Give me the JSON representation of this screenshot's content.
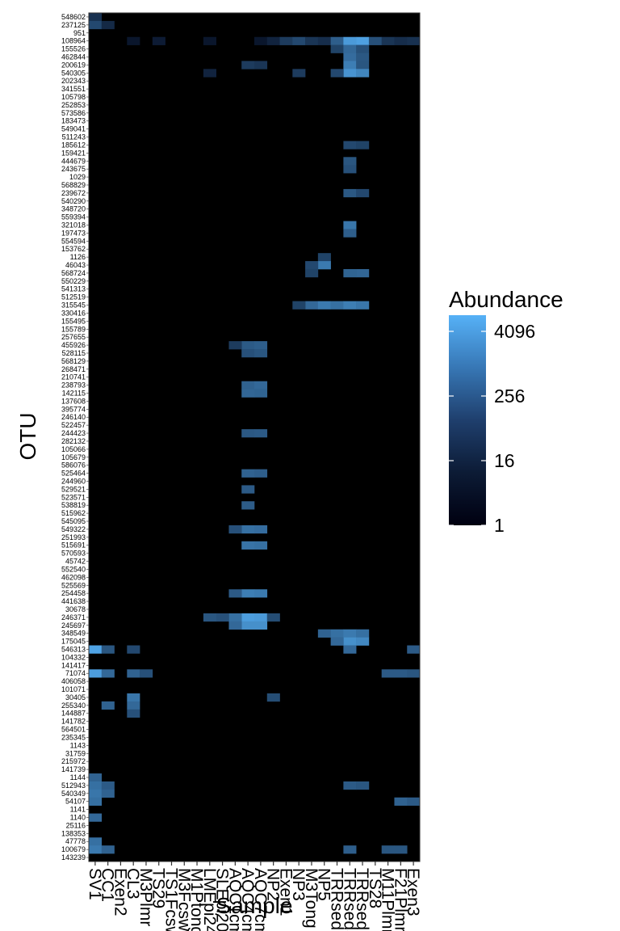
{
  "chart_data": {
    "type": "heatmap",
    "xlabel": "Sample",
    "ylabel": "OTU",
    "x_categories": [
      "SV1",
      "CC1",
      "Exen2",
      "CL3",
      "M3Plmr",
      "TS29",
      "TS1Fcsw",
      "M3Fcsw",
      "M1Ptong",
      "LMEpi24M",
      "SLEpi20M",
      "AQC1cm",
      "AQC4cm",
      "AQC7cm",
      "NP2",
      "Exen1",
      "NP3",
      "M3Tong",
      "NP5",
      "TRRsed1",
      "TRRsed3",
      "TRRsed2",
      "TS28",
      "M11Plmr",
      "F21Plmr",
      "Exen3"
    ],
    "y_categories": [
      "548602",
      "237125",
      "951",
      "108964",
      "155526",
      "462844",
      "200619",
      "540305",
      "202343",
      "341551",
      "105798",
      "252853",
      "573586",
      "183473",
      "549041",
      "511243",
      "185612",
      "159421",
      "444679",
      "243675",
      "1029",
      "568829",
      "239672",
      "540290",
      "348720",
      "559394",
      "321018",
      "197473",
      "554594",
      "153762",
      "1126",
      "46043",
      "568724",
      "550229",
      "541313",
      "512519",
      "315545",
      "330416",
      "155495",
      "155789",
      "257655",
      "455926",
      "528115",
      "568129",
      "268471",
      "210741",
      "238793",
      "142115",
      "137608",
      "395774",
      "246140",
      "522457",
      "244423",
      "282132",
      "105066",
      "105679",
      "586076",
      "525464",
      "244960",
      "529521",
      "523571",
      "538819",
      "515962",
      "545095",
      "549322",
      "251993",
      "515691",
      "570593",
      "45742",
      "552540",
      "462098",
      "525569",
      "254458",
      "441638",
      "30678",
      "246371",
      "245697",
      "348549",
      "175045",
      "546313",
      "104332",
      "141417",
      "71074",
      "406058",
      "101071",
      "30405",
      "255340",
      "144887",
      "141782",
      "564501",
      "235345",
      "1143",
      "31759",
      "215972",
      "141739",
      "1144",
      "512943",
      "540349",
      "54107",
      "1141",
      "1140",
      "25116",
      "138353",
      "47778",
      "100679",
      "143239"
    ],
    "colorscale": {
      "title": "Abundance",
      "scale": "log",
      "low_color": "#000010",
      "high_color": "#56b1f7",
      "tick_labels": [
        "4096",
        "256",
        "16",
        "1"
      ],
      "tick_values": [
        4096,
        256,
        16,
        1
      ],
      "max_value": 8192
    },
    "panel_background": "#000000",
    "hot_cells": [
      {
        "sample": "SV1",
        "otu": "548602",
        "value": 12
      },
      {
        "sample": "SV1",
        "otu": "237125",
        "value": 40
      },
      {
        "sample": "CC1",
        "otu": "237125",
        "value": 8
      },
      {
        "sample": "CL3",
        "otu": "108964",
        "value": 3
      },
      {
        "sample": "TS29",
        "otu": "108964",
        "value": 4
      },
      {
        "sample": "LMEpi24M",
        "otu": "108964",
        "value": 3
      },
      {
        "sample": "AQC7cm",
        "otu": "108964",
        "value": 3
      },
      {
        "sample": "NP2",
        "otu": "108964",
        "value": 6
      },
      {
        "sample": "Exen1",
        "otu": "108964",
        "value": 20
      },
      {
        "sample": "NP3",
        "otu": "108964",
        "value": 40
      },
      {
        "sample": "M3Tong",
        "otu": "108964",
        "value": 15
      },
      {
        "sample": "NP5",
        "otu": "108964",
        "value": 10
      },
      {
        "sample": "TRRsed1",
        "otu": "108964",
        "value": 120
      },
      {
        "sample": "TRRsed3",
        "otu": "108964",
        "value": 2500
      },
      {
        "sample": "TRRsed2",
        "otu": "108964",
        "value": 3500
      },
      {
        "sample": "TS28",
        "otu": "108964",
        "value": 60
      },
      {
        "sample": "M11Plmr",
        "otu": "108964",
        "value": 15
      },
      {
        "sample": "F21Plmr",
        "otu": "108964",
        "value": 10
      },
      {
        "sample": "Exen3",
        "otu": "108964",
        "value": 12
      },
      {
        "sample": "TRRsed1",
        "otu": "155526",
        "value": 30
      },
      {
        "sample": "TRRsed3",
        "otu": "155526",
        "value": 200
      },
      {
        "sample": "TRRsed2",
        "otu": "155526",
        "value": 60
      },
      {
        "sample": "TRRsed3",
        "otu": "462844",
        "value": 250
      },
      {
        "sample": "TRRsed2",
        "otu": "462844",
        "value": 90
      },
      {
        "sample": "AQC4cm",
        "otu": "200619",
        "value": 20
      },
      {
        "sample": "AQC7cm",
        "otu": "200619",
        "value": 15
      },
      {
        "sample": "TRRsed3",
        "otu": "200619",
        "value": 600
      },
      {
        "sample": "TRRsed2",
        "otu": "200619",
        "value": 80
      },
      {
        "sample": "LMEpi24M",
        "otu": "540305",
        "value": 6
      },
      {
        "sample": "NP3",
        "otu": "540305",
        "value": 20
      },
      {
        "sample": "TRRsed3",
        "otu": "540305",
        "value": 1800
      },
      {
        "sample": "TRRsed2",
        "otu": "540305",
        "value": 900
      },
      {
        "sample": "TRRsed1",
        "otu": "540305",
        "value": 40
      },
      {
        "sample": "TRRsed3",
        "otu": "185612",
        "value": 40
      },
      {
        "sample": "TRRsed2",
        "otu": "185612",
        "value": 30
      },
      {
        "sample": "TRRsed3",
        "otu": "444679",
        "value": 80
      },
      {
        "sample": "TRRsed3",
        "otu": "243675",
        "value": 60
      },
      {
        "sample": "TRRsed3",
        "otu": "239672",
        "value": 90
      },
      {
        "sample": "TRRsed2",
        "otu": "239672",
        "value": 40
      },
      {
        "sample": "TRRsed3",
        "otu": "321018",
        "value": 400
      },
      {
        "sample": "TRRsed3",
        "otu": "197473",
        "value": 120
      },
      {
        "sample": "NP5",
        "otu": "1126",
        "value": 30
      },
      {
        "sample": "NP5",
        "otu": "46043",
        "value": 500
      },
      {
        "sample": "M3Tong",
        "otu": "46043",
        "value": 40
      },
      {
        "sample": "TRRsed3",
        "otu": "568724",
        "value": 160
      },
      {
        "sample": "TRRsed2",
        "otu": "568724",
        "value": 180
      },
      {
        "sample": "M3Tong",
        "otu": "568724",
        "value": 30
      },
      {
        "sample": "M3Tong",
        "otu": "315545",
        "value": 200
      },
      {
        "sample": "NP5",
        "otu": "315545",
        "value": 500
      },
      {
        "sample": "TRRsed1",
        "otu": "315545",
        "value": 300
      },
      {
        "sample": "TRRsed3",
        "otu": "315545",
        "value": 600
      },
      {
        "sample": "TRRsed2",
        "otu": "315545",
        "value": 400
      },
      {
        "sample": "NP3",
        "otu": "315545",
        "value": 30
      },
      {
        "sample": "AQC4cm",
        "otu": "455926",
        "value": 100
      },
      {
        "sample": "AQC7cm",
        "otu": "455926",
        "value": 120
      },
      {
        "sample": "AQC1cm",
        "otu": "455926",
        "value": 20
      },
      {
        "sample": "AQC4cm",
        "otu": "528115",
        "value": 60
      },
      {
        "sample": "AQC7cm",
        "otu": "528115",
        "value": 80
      },
      {
        "sample": "AQC4cm",
        "otu": "238793",
        "value": 150
      },
      {
        "sample": "AQC7cm",
        "otu": "238793",
        "value": 200
      },
      {
        "sample": "AQC4cm",
        "otu": "142115",
        "value": 180
      },
      {
        "sample": "AQC7cm",
        "otu": "142115",
        "value": 160
      },
      {
        "sample": "AQC4cm",
        "otu": "244423",
        "value": 90
      },
      {
        "sample": "AQC7cm",
        "otu": "244423",
        "value": 100
      },
      {
        "sample": "AQC4cm",
        "otu": "525464",
        "value": 150
      },
      {
        "sample": "AQC7cm",
        "otu": "525464",
        "value": 120
      },
      {
        "sample": "AQC4cm",
        "otu": "529521",
        "value": 100
      },
      {
        "sample": "AQC4cm",
        "otu": "538819",
        "value": 110
      },
      {
        "sample": "AQC4cm",
        "otu": "549322",
        "value": 300
      },
      {
        "sample": "AQC7cm",
        "otu": "549322",
        "value": 250
      },
      {
        "sample": "AQC1cm",
        "otu": "549322",
        "value": 60
      },
      {
        "sample": "AQC4cm",
        "otu": "515691",
        "value": 350
      },
      {
        "sample": "AQC7cm",
        "otu": "515691",
        "value": 300
      },
      {
        "sample": "AQC4cm",
        "otu": "254458",
        "value": 600
      },
      {
        "sample": "AQC7cm",
        "otu": "254458",
        "value": 500
      },
      {
        "sample": "AQC1cm",
        "otu": "254458",
        "value": 100
      },
      {
        "sample": "AQC4cm",
        "otu": "246371",
        "value": 3000
      },
      {
        "sample": "AQC7cm",
        "otu": "246371",
        "value": 2500
      },
      {
        "sample": "AQC1cm",
        "otu": "246371",
        "value": 300
      },
      {
        "sample": "SLEpi20M",
        "otu": "246371",
        "value": 60
      },
      {
        "sample": "LMEpi24M",
        "otu": "246371",
        "value": 80
      },
      {
        "sample": "NP2",
        "otu": "246371",
        "value": 50
      },
      {
        "sample": "AQC4cm",
        "otu": "245697",
        "value": 1500
      },
      {
        "sample": "AQC7cm",
        "otu": "245697",
        "value": 1500
      },
      {
        "sample": "AQC1cm",
        "otu": "245697",
        "value": 200
      },
      {
        "sample": "NP5",
        "otu": "348549",
        "value": 150
      },
      {
        "sample": "TRRsed1",
        "otu": "348549",
        "value": 300
      },
      {
        "sample": "TRRsed3",
        "otu": "348549",
        "value": 500
      },
      {
        "sample": "TRRsed2",
        "otu": "348549",
        "value": 300
      },
      {
        "sample": "TRRsed3",
        "otu": "175045",
        "value": 1500
      },
      {
        "sample": "TRRsed2",
        "otu": "175045",
        "value": 1000
      },
      {
        "sample": "TRRsed1",
        "otu": "175045",
        "value": 200
      },
      {
        "sample": "SV1",
        "otu": "546313",
        "value": 4000
      },
      {
        "sample": "CC1",
        "otu": "546313",
        "value": 80
      },
      {
        "sample": "CL3",
        "otu": "546313",
        "value": 40
      },
      {
        "sample": "TRRsed3",
        "otu": "546313",
        "value": 200
      },
      {
        "sample": "Exen3",
        "otu": "546313",
        "value": 100
      },
      {
        "sample": "SV1",
        "otu": "71074",
        "value": 3000
      },
      {
        "sample": "CC1",
        "otu": "71074",
        "value": 200
      },
      {
        "sample": "CL3",
        "otu": "71074",
        "value": 150
      },
      {
        "sample": "M3Plmr",
        "otu": "71074",
        "value": 60
      },
      {
        "sample": "M11Plmr",
        "otu": "71074",
        "value": 100
      },
      {
        "sample": "F21Plmr",
        "otu": "71074",
        "value": 100
      },
      {
        "sample": "Exen3",
        "otu": "71074",
        "value": 80
      },
      {
        "sample": "CL3",
        "otu": "30405",
        "value": 400
      },
      {
        "sample": "CL3",
        "otu": "255340",
        "value": 200
      },
      {
        "sample": "CL3",
        "otu": "144887",
        "value": 60
      },
      {
        "sample": "CC1",
        "otu": "255340",
        "value": 150
      },
      {
        "sample": "NP2",
        "otu": "30405",
        "value": 50
      },
      {
        "sample": "SV1",
        "otu": "1144",
        "value": 150
      },
      {
        "sample": "SV1",
        "otu": "512943",
        "value": 300
      },
      {
        "sample": "SV1",
        "otu": "540349",
        "value": 400
      },
      {
        "sample": "SV1",
        "otu": "54107",
        "value": 300
      },
      {
        "sample": "SV1",
        "otu": "1140",
        "value": 200
      },
      {
        "sample": "SV1",
        "otu": "47778",
        "value": 300
      },
      {
        "sample": "SV1",
        "otu": "100679",
        "value": 500
      },
      {
        "sample": "CC1",
        "otu": "512943",
        "value": 100
      },
      {
        "sample": "CC1",
        "otu": "540349",
        "value": 150
      },
      {
        "sample": "CC1",
        "otu": "100679",
        "value": 150
      },
      {
        "sample": "TRRsed3",
        "otu": "512943",
        "value": 100
      },
      {
        "sample": "TRRsed2",
        "otu": "512943",
        "value": 80
      },
      {
        "sample": "TRRsed3",
        "otu": "100679",
        "value": 120
      },
      {
        "sample": "F21Plmr",
        "otu": "54107",
        "value": 150
      },
      {
        "sample": "Exen3",
        "otu": "54107",
        "value": 100
      },
      {
        "sample": "M11Plmr",
        "otu": "100679",
        "value": 80
      },
      {
        "sample": "F21Plmr",
        "otu": "100679",
        "value": 80
      }
    ]
  }
}
